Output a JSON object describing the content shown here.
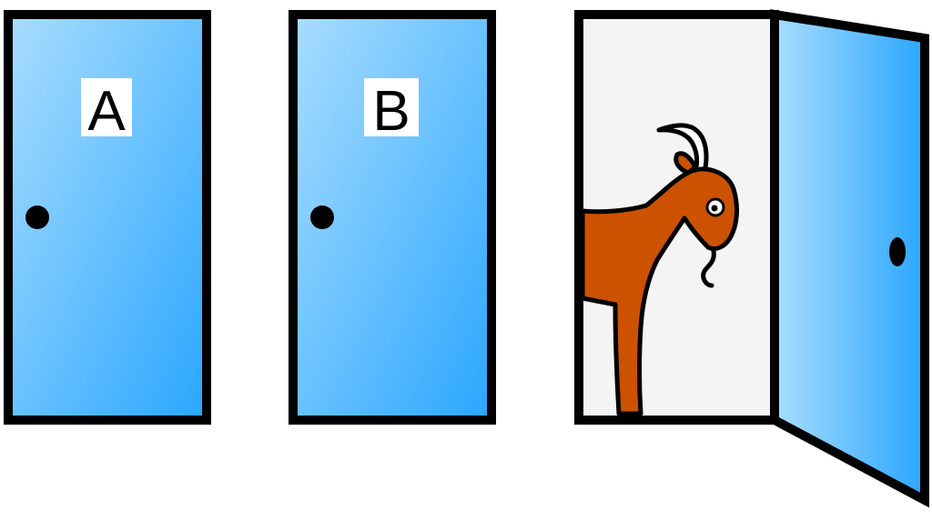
{
  "colors": {
    "door_light": "#a9ddff",
    "door_dark": "#2aa6ff",
    "outline": "#000000",
    "doorway_interior": "#f4f4f4",
    "goat_body": "#cc5200",
    "label_bg": "#ffffff",
    "page_bg": "#ffffff"
  },
  "doors": [
    {
      "label": "A",
      "state": "closed",
      "icon": "door-closed-icon"
    },
    {
      "label": "B",
      "state": "closed",
      "icon": "door-closed-icon"
    },
    {
      "label": "",
      "state": "open",
      "icon": "door-open-icon",
      "reveals": "goat-icon"
    }
  ]
}
